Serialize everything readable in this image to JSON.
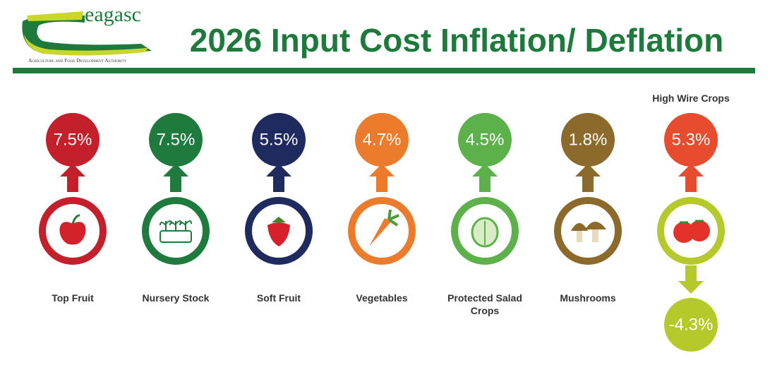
{
  "header": {
    "logo_text": "eagasc",
    "logo_subtitle": "Agriculture and Food Development Authority",
    "title": "2026 Input Cost Inflation/ Deflation"
  },
  "items": [
    {
      "label": "Top Fruit",
      "increase": "7.5%",
      "color": "#c3202b"
    },
    {
      "label": "Nursery Stock",
      "increase": "7.5%",
      "color": "#1f7a3e"
    },
    {
      "label": "Soft Fruit",
      "increase": "5.5%",
      "color": "#1f2a5f"
    },
    {
      "label": "Vegetables",
      "increase": "4.7%",
      "color": "#ec7b2c"
    },
    {
      "label": "Protected Salad Crops",
      "increase": "4.5%",
      "color": "#5cb14a"
    },
    {
      "label": "Mushrooms",
      "increase": "1.8%",
      "color": "#8b6a2c"
    },
    {
      "label": "High Wire Crops",
      "increase": "5.3%",
      "color": "#e74c2e",
      "decrease": "-4.3%",
      "decrease_color": "#b6c92b"
    }
  ]
}
